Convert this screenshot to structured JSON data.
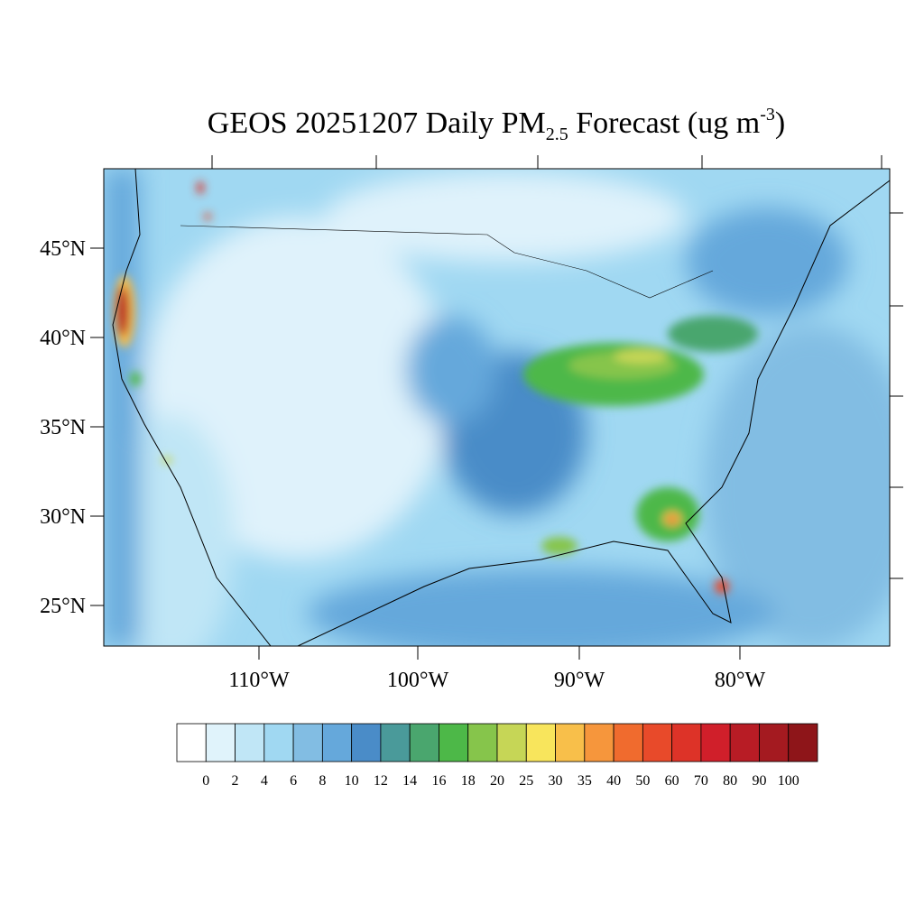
{
  "title": {
    "main": "GEOS 20251207 Daily PM",
    "subscript": "2.5",
    "after": " Forecast (ug m",
    "superscript": "-3",
    "close": ")"
  },
  "map": {
    "lat_labels": [
      "45°N",
      "40°N",
      "35°N",
      "30°N",
      "25°N"
    ],
    "lon_labels": [
      "110°W",
      "100°W",
      "90°W",
      "80°W"
    ]
  },
  "colorbar": {
    "levels": [
      0,
      2,
      4,
      6,
      8,
      10,
      12,
      14,
      16,
      18,
      20,
      25,
      30,
      35,
      40,
      50,
      60,
      70,
      80,
      90,
      100
    ],
    "colors": [
      "#ffffff",
      "#e0f3fb",
      "#c0e6f6",
      "#a0d8f2",
      "#82bde3",
      "#65a8db",
      "#4a8cc8",
      "#4a9a9a",
      "#4aa66e",
      "#4db848",
      "#86c54b",
      "#c6d656",
      "#f8e55c",
      "#f8bf4a",
      "#f6963c",
      "#f06b2e",
      "#e84a2a",
      "#dd3328",
      "#d01f2a",
      "#b81c25",
      "#a41a20",
      "#8e1519"
    ]
  }
}
